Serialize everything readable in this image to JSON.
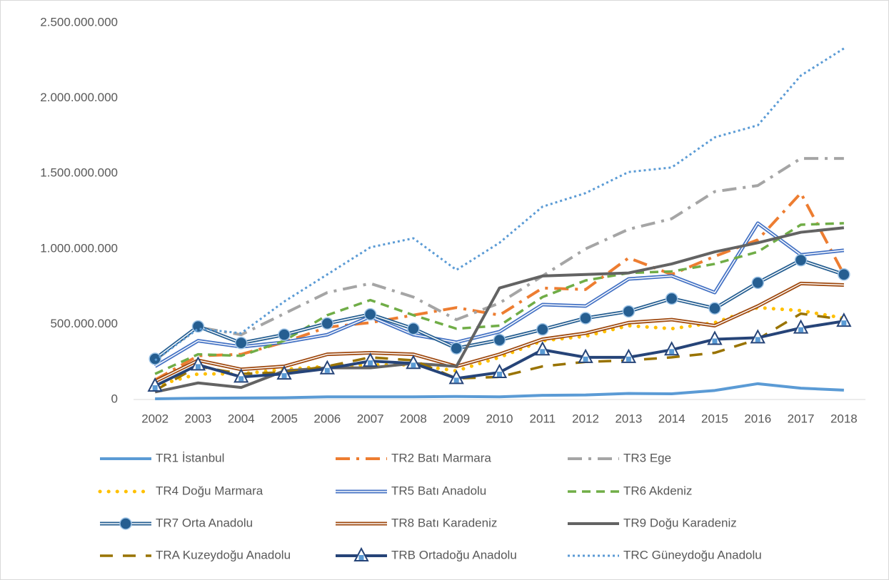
{
  "chart_data": {
    "type": "line",
    "categories": [
      "2002",
      "2003",
      "2004",
      "2005",
      "2006",
      "2007",
      "2008",
      "2009",
      "2010",
      "2011",
      "2012",
      "2013",
      "2014",
      "2015",
      "2016",
      "2017",
      "2018"
    ],
    "ylim": [
      0,
      2500000000
    ],
    "yticks": [
      0,
      {
        "value": 500000000,
        "label": "500.000.000"
      },
      {
        "value": 1000000000,
        "label": "1.000.000.000"
      },
      {
        "value": 1500000000,
        "label": "1.500.000.000"
      },
      {
        "value": 2000000000,
        "label": "2.000.000.000"
      },
      {
        "value": 2500000000,
        "label": "2.500.000.000"
      }
    ],
    "grid": false,
    "legend": "bottom",
    "series": [
      {
        "name": "TR1 İstanbul",
        "color": "#5b9bd5",
        "line": "solid",
        "marker": null,
        "values": [
          5000000,
          8000000,
          10000000,
          12000000,
          18000000,
          18000000,
          18000000,
          20000000,
          18000000,
          28000000,
          30000000,
          40000000,
          38000000,
          60000000,
          105000000,
          75000000,
          62000000
        ]
      },
      {
        "name": "TR2 Batı Marmara",
        "color": "#ed7d31",
        "line": "long-dash-dot",
        "marker": null,
        "values": [
          130000000,
          290000000,
          300000000,
          380000000,
          480000000,
          510000000,
          560000000,
          610000000,
          560000000,
          740000000,
          730000000,
          940000000,
          830000000,
          950000000,
          1060000000,
          1370000000,
          830000000
        ]
      },
      {
        "name": "TR3 Ege",
        "color": "#a5a5a5",
        "line": "long-dash-dot",
        "marker": null,
        "values": [
          260000000,
          480000000,
          430000000,
          570000000,
          710000000,
          770000000,
          680000000,
          530000000,
          640000000,
          820000000,
          1000000000,
          1130000000,
          1200000000,
          1380000000,
          1420000000,
          1600000000,
          1600000000
        ]
      },
      {
        "name": "TR4 Doğu Marmara",
        "color": "#ffc000",
        "line": "round-dot",
        "marker": null,
        "values": [
          90000000,
          170000000,
          170000000,
          200000000,
          220000000,
          230000000,
          230000000,
          190000000,
          280000000,
          390000000,
          420000000,
          490000000,
          470000000,
          510000000,
          610000000,
          590000000,
          540000000
        ]
      },
      {
        "name": "TR5 Batı Anadolu",
        "color": "#4472c4",
        "line": "double",
        "marker": null,
        "values": [
          220000000,
          390000000,
          350000000,
          380000000,
          430000000,
          550000000,
          430000000,
          380000000,
          450000000,
          630000000,
          620000000,
          800000000,
          820000000,
          710000000,
          1170000000,
          960000000,
          990000000
        ]
      },
      {
        "name": "TR6 Akdeniz",
        "color": "#70ad47",
        "line": "dash",
        "marker": null,
        "values": [
          170000000,
          300000000,
          290000000,
          390000000,
          560000000,
          660000000,
          560000000,
          470000000,
          490000000,
          680000000,
          790000000,
          840000000,
          850000000,
          900000000,
          980000000,
          1160000000,
          1170000000
        ]
      },
      {
        "name": "TR7 Orta Anadolu",
        "color": "#255e91",
        "line": "double",
        "marker": "circle",
        "values": [
          270000000,
          485000000,
          375000000,
          430000000,
          505000000,
          565000000,
          470000000,
          340000000,
          395000000,
          465000000,
          540000000,
          585000000,
          670000000,
          605000000,
          775000000,
          925000000,
          830000000
        ]
      },
      {
        "name": "TR8 Batı Karadeniz",
        "color": "#9e480e",
        "line": "double",
        "marker": null,
        "values": [
          120000000,
          260000000,
          200000000,
          220000000,
          300000000,
          310000000,
          300000000,
          220000000,
          300000000,
          400000000,
          440000000,
          510000000,
          530000000,
          490000000,
          620000000,
          770000000,
          760000000
        ]
      },
      {
        "name": "TR9 Doğu Karadeniz",
        "color": "#636363",
        "line": "solid",
        "marker": null,
        "values": [
          50000000,
          110000000,
          80000000,
          190000000,
          210000000,
          210000000,
          240000000,
          220000000,
          740000000,
          820000000,
          830000000,
          840000000,
          900000000,
          980000000,
          1040000000,
          1110000000,
          1140000000
        ]
      },
      {
        "name": "TRA Kuzeydoğu Anadolu",
        "color": "#997300",
        "line": "long-dash",
        "marker": null,
        "values": [
          60000000,
          220000000,
          170000000,
          180000000,
          220000000,
          280000000,
          260000000,
          140000000,
          150000000,
          220000000,
          250000000,
          260000000,
          280000000,
          310000000,
          400000000,
          570000000,
          530000000
        ]
      },
      {
        "name": "TRB Ortadoğu Anadolu",
        "color": "#264478",
        "line": "solid",
        "marker": "triangle",
        "values": [
          90000000,
          230000000,
          150000000,
          170000000,
          205000000,
          255000000,
          240000000,
          140000000,
          180000000,
          330000000,
          280000000,
          280000000,
          330000000,
          400000000,
          410000000,
          475000000,
          520000000
        ]
      },
      {
        "name": "TRC Güneydoğu Anadolu",
        "color": "#5b9bd5",
        "line": "square-dot",
        "marker": null,
        "values": [
          260000000,
          470000000,
          440000000,
          650000000,
          830000000,
          1010000000,
          1070000000,
          860000000,
          1040000000,
          1280000000,
          1370000000,
          1510000000,
          1540000000,
          1740000000,
          1820000000,
          2150000000,
          2330000000
        ]
      }
    ]
  }
}
